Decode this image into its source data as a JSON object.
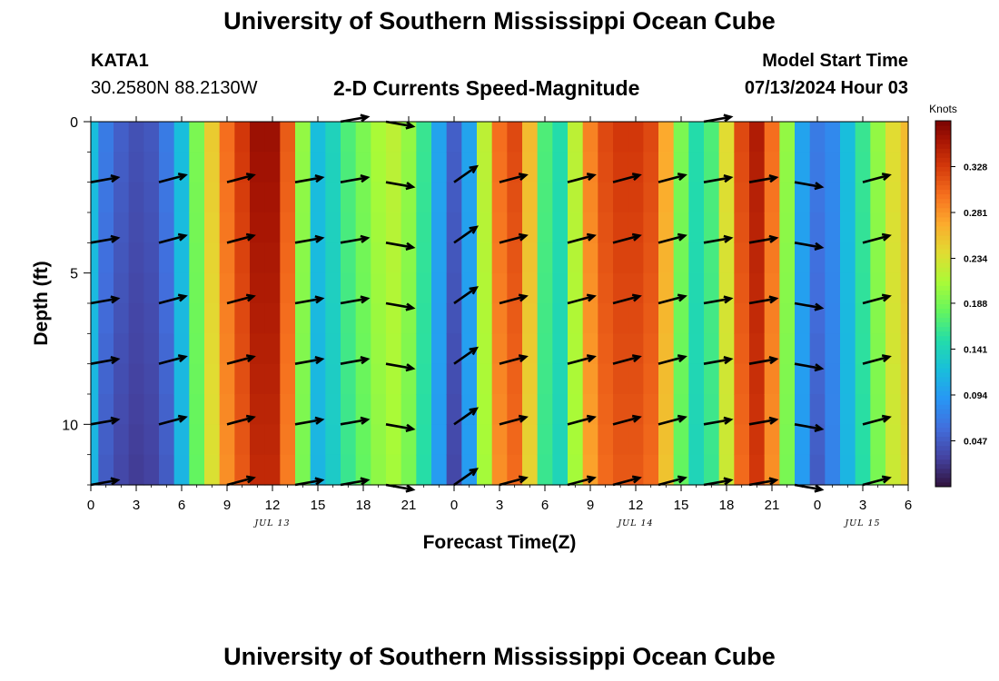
{
  "header": {
    "title": "University of Southern Mississippi Ocean Cube",
    "station": "KATA1",
    "coords": "30.2580N  88.2130W",
    "subtitle": "2-D Currents Speed-Magnitude",
    "start_label": "Model Start Time",
    "start_value": "07/13/2024 Hour 03"
  },
  "footer": {
    "title": "University of Southern Mississippi Ocean Cube"
  },
  "chart_data": {
    "type": "heatmap",
    "xlabel": "Forecast Time(Z)",
    "ylabel": "Depth (ft)",
    "x_ticks": [
      "0",
      "3",
      "6",
      "9",
      "12",
      "15",
      "18",
      "21",
      "0",
      "3",
      "6",
      "9",
      "12",
      "15",
      "18",
      "21",
      "0",
      "3",
      "6"
    ],
    "date_labels": [
      {
        "label": "JUL 13",
        "at_tick": 4
      },
      {
        "label": "JUL 14",
        "at_tick": 12
      },
      {
        "label": "JUL 15",
        "at_tick": 17
      }
    ],
    "y_ticks": [
      0,
      5,
      10
    ],
    "ylim": [
      0,
      12
    ],
    "xlim_hours": [
      0,
      54
    ],
    "colorbar": {
      "title": "Knots",
      "ticks": [
        0.047,
        0.094,
        0.141,
        0.188,
        0.234,
        0.281,
        0.328
      ],
      "range": [
        0.0,
        0.375
      ]
    },
    "speed_by_hour": [
      {
        "h": 0,
        "v": 0.12
      },
      {
        "h": 1,
        "v": 0.07
      },
      {
        "h": 2,
        "v": 0.05
      },
      {
        "h": 3,
        "v": 0.04
      },
      {
        "h": 4,
        "v": 0.045
      },
      {
        "h": 5,
        "v": 0.07
      },
      {
        "h": 6,
        "v": 0.12
      },
      {
        "h": 7,
        "v": 0.19
      },
      {
        "h": 8,
        "v": 0.25
      },
      {
        "h": 9,
        "v": 0.3
      },
      {
        "h": 10,
        "v": 0.33
      },
      {
        "h": 11,
        "v": 0.36
      },
      {
        "h": 12,
        "v": 0.36
      },
      {
        "h": 13,
        "v": 0.31
      },
      {
        "h": 14,
        "v": 0.2
      },
      {
        "h": 15,
        "v": 0.12
      },
      {
        "h": 16,
        "v": 0.14
      },
      {
        "h": 17,
        "v": 0.17
      },
      {
        "h": 18,
        "v": 0.19
      },
      {
        "h": 19,
        "v": 0.21
      },
      {
        "h": 20,
        "v": 0.22
      },
      {
        "h": 21,
        "v": 0.2
      },
      {
        "h": 22,
        "v": 0.16
      },
      {
        "h": 23,
        "v": 0.1
      },
      {
        "h": 24,
        "v": 0.05
      },
      {
        "h": 25,
        "v": 0.1
      },
      {
        "h": 26,
        "v": 0.22
      },
      {
        "h": 27,
        "v": 0.3
      },
      {
        "h": 28,
        "v": 0.32
      },
      {
        "h": 29,
        "v": 0.26
      },
      {
        "h": 30,
        "v": 0.17
      },
      {
        "h": 31,
        "v": 0.15
      },
      {
        "h": 32,
        "v": 0.22
      },
      {
        "h": 33,
        "v": 0.29
      },
      {
        "h": 34,
        "v": 0.32
      },
      {
        "h": 35,
        "v": 0.33
      },
      {
        "h": 36,
        "v": 0.33
      },
      {
        "h": 37,
        "v": 0.32
      },
      {
        "h": 38,
        "v": 0.27
      },
      {
        "h": 39,
        "v": 0.19
      },
      {
        "h": 40,
        "v": 0.15
      },
      {
        "h": 41,
        "v": 0.17
      },
      {
        "h": 42,
        "v": 0.24
      },
      {
        "h": 43,
        "v": 0.32
      },
      {
        "h": 44,
        "v": 0.35
      },
      {
        "h": 45,
        "v": 0.3
      },
      {
        "h": 46,
        "v": 0.2
      },
      {
        "h": 47,
        "v": 0.1
      },
      {
        "h": 48,
        "v": 0.07
      },
      {
        "h": 49,
        "v": 0.08
      },
      {
        "h": 50,
        "v": 0.12
      },
      {
        "h": 51,
        "v": 0.16
      },
      {
        "h": 52,
        "v": 0.2
      },
      {
        "h": 53,
        "v": 0.24
      },
      {
        "h": 54,
        "v": 0.26
      }
    ],
    "vectors": {
      "hours": [
        0,
        4.5,
        9,
        13.5,
        16.5,
        19.5,
        24,
        27,
        31.5,
        34.5,
        37.5,
        40.5,
        43.5,
        46.5,
        51
      ],
      "depths": [
        0,
        2,
        4,
        6,
        8,
        10,
        12
      ],
      "dirs_deg": [
        80,
        75,
        75,
        80,
        80,
        100,
        55,
        75,
        75,
        75,
        75,
        80,
        80,
        100,
        75
      ],
      "rows": [
        [
          0,
          0,
          0,
          0,
          1,
          1,
          0,
          0,
          0,
          0,
          0,
          1,
          0,
          0,
          0
        ],
        [
          1,
          1,
          1,
          1,
          1,
          1,
          1,
          1,
          1,
          1,
          1,
          1,
          1,
          1,
          1
        ],
        [
          1,
          1,
          1,
          1,
          1,
          1,
          1,
          1,
          1,
          1,
          1,
          1,
          1,
          1,
          1
        ],
        [
          1,
          1,
          1,
          1,
          1,
          1,
          1,
          1,
          1,
          1,
          1,
          1,
          1,
          1,
          1
        ],
        [
          1,
          1,
          1,
          1,
          1,
          1,
          1,
          1,
          1,
          1,
          1,
          1,
          1,
          1,
          1
        ],
        [
          1,
          1,
          1,
          1,
          1,
          1,
          1,
          1,
          1,
          1,
          1,
          1,
          1,
          1,
          1
        ],
        [
          1,
          0,
          1,
          1,
          1,
          1,
          1,
          1,
          1,
          1,
          1,
          1,
          1,
          1,
          1
        ]
      ]
    }
  }
}
